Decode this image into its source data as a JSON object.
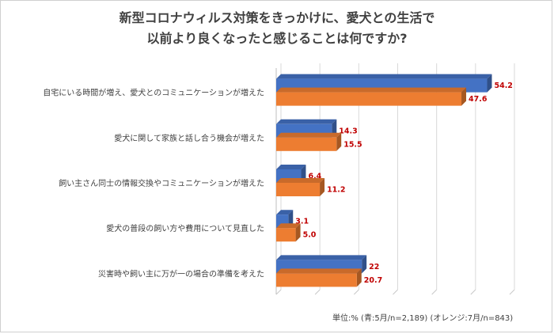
{
  "title_line1": "新型コロナウィルス対策をきっかけに、愛犬との生活で",
  "title_line2": "以前より良くなったと感じることは何ですか?",
  "footnote": "単位:% (青:5月/n=2,189) (オレンジ:7月/n=843)",
  "colors": {
    "blue": "#4472C4",
    "orange": "#ED7D31",
    "label": "#C00000"
  },
  "chart_data": {
    "type": "bar",
    "orientation": "horizontal",
    "categories": [
      "自宅にいる時間が増え、愛犬とのコミュニケーションが増えた",
      "愛犬に関して家族と話し合う機会が増えた",
      "飼い主さん同士の情報交換やコミュニケーションが増えた",
      "愛犬の普段の飼い方や費用について見直した",
      "災害時や飼い主に万が一の場合の準備を考えた"
    ],
    "series": [
      {
        "values": [
          54.2,
          14.3,
          6.4,
          3.1,
          22
        ],
        "labels": [
          "54.2",
          "14.3",
          "6.4",
          "3.1",
          "22"
        ]
      },
      {
        "values": [
          47.6,
          15.5,
          11.2,
          5.0,
          20.7
        ],
        "labels": [
          "47.6",
          "15.5",
          "11.2",
          "5.0",
          "20.7"
        ]
      }
    ],
    "xlim": [
      0,
      60
    ],
    "grid": true
  }
}
